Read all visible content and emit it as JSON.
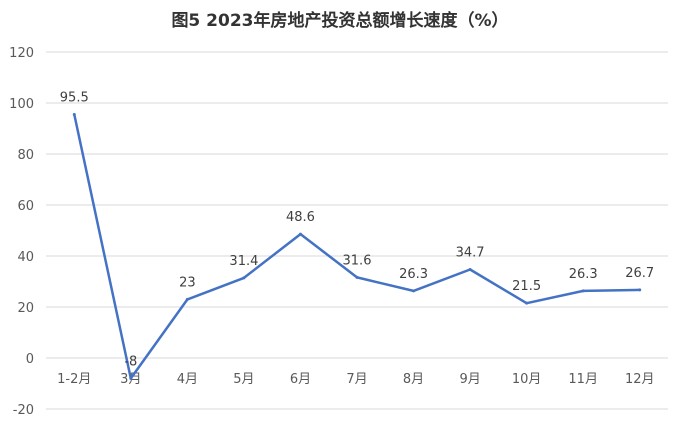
{
  "chart_data": {
    "type": "line",
    "title": "图5  2023年房地产投资总额增长速度（%）",
    "categories": [
      "1-2月",
      "3月",
      "4月",
      "5月",
      "6月",
      "7月",
      "8月",
      "9月",
      "10月",
      "11月",
      "12月"
    ],
    "series": [
      {
        "values": [
          95.5,
          -8,
          23,
          31.4,
          48.6,
          31.6,
          26.3,
          34.7,
          21.5,
          26.3,
          26.7
        ]
      }
    ],
    "data_labels": [
      "95.5",
      "-8",
      "23",
      "31.4",
      "48.6",
      "31.6",
      "26.3",
      "34.7",
      "21.5",
      "26.3",
      "26.7"
    ],
    "ylim": [
      -20,
      120
    ],
    "yticks": [
      -20,
      0,
      20,
      40,
      60,
      80,
      100,
      120
    ],
    "xlabel": "",
    "ylabel": "",
    "grid": true,
    "line_color": "#4472C4",
    "grid_color": "#D9D9D9"
  }
}
